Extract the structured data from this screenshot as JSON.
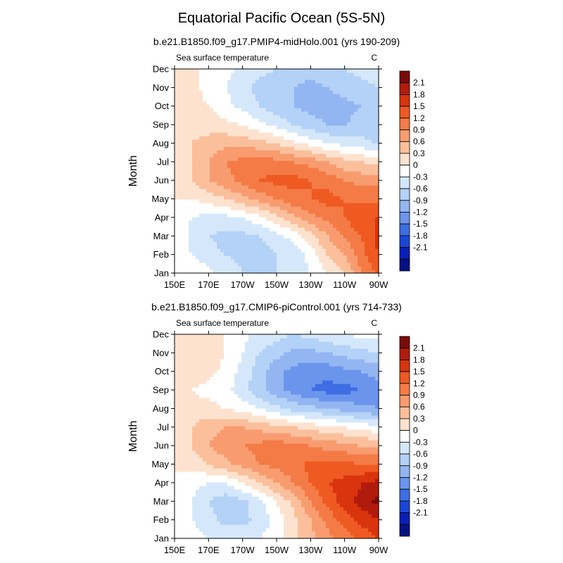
{
  "figure": {
    "title": "Equatorial Pacific Ocean (5S-5N)"
  },
  "colorbar": {
    "levels": [
      "2.1",
      "1.8",
      "1.5",
      "1.2",
      "0.9",
      "0.6",
      "0.3",
      "0",
      "-0.3",
      "-0.6",
      "-0.9",
      "-1.2",
      "-1.5",
      "-1.8",
      "-2.1"
    ],
    "colors": [
      "#7b0a0a",
      "#b11b0c",
      "#d9340e",
      "#ef5a22",
      "#f47b46",
      "#f89c70",
      "#fbbf9b",
      "#fde3cf",
      "#ffffff",
      "#d5e8fb",
      "#b4d1f7",
      "#93b6f2",
      "#6b95ec",
      "#3e6de4",
      "#1c46d6",
      "#0b1fb8",
      "#061283"
    ]
  },
  "chart_data": [
    {
      "type": "heatmap",
      "subtitle": "b.e21.B1850.f09_g17.PMIP4-midHolo.001 (yrs 190-209)",
      "label_left": "Sea surface temperature",
      "label_right": "C",
      "ylabel": "Month",
      "xlabel": "",
      "x_ticks": [
        "150E",
        "170E",
        "170W",
        "150W",
        "130W",
        "110W",
        "90W"
      ],
      "y_ticks": [
        "Jan",
        "Feb",
        "Mar",
        "Apr",
        "May",
        "Jun",
        "Jul",
        "Aug",
        "Sep",
        "Oct",
        "Nov",
        "Dec"
      ],
      "xlim": [
        150,
        270
      ],
      "values_rows_jan_to_dec_cols_150E_to_90W": [
        [
          0.0,
          0.0,
          -0.2,
          -0.4,
          -0.6,
          -0.7,
          -0.6,
          -0.5,
          -0.3,
          0.0,
          0.3,
          0.9,
          1.3
        ],
        [
          0.0,
          -0.3,
          -0.5,
          -0.6,
          -0.7,
          -0.8,
          -0.6,
          -0.5,
          -0.2,
          0.3,
          0.6,
          1.1,
          1.5
        ],
        [
          0.0,
          -0.4,
          -0.6,
          -0.7,
          -0.7,
          -0.6,
          -0.4,
          -0.2,
          0.2,
          0.6,
          0.9,
          1.2,
          1.6
        ],
        [
          0.0,
          -0.3,
          -0.4,
          -0.4,
          -0.3,
          -0.1,
          0.2,
          0.5,
          0.8,
          1.0,
          1.2,
          1.5,
          1.5
        ],
        [
          0.0,
          0.0,
          0.1,
          0.3,
          0.5,
          0.7,
          0.9,
          1.1,
          1.2,
          1.3,
          1.2,
          1.1,
          1.1
        ],
        [
          0.0,
          0.3,
          0.6,
          0.8,
          1.0,
          1.2,
          1.3,
          1.3,
          1.2,
          1.1,
          0.9,
          0.8,
          0.8
        ],
        [
          0.1,
          0.3,
          0.6,
          0.9,
          1.0,
          1.1,
          1.0,
          0.9,
          0.8,
          0.6,
          0.4,
          0.3,
          0.2
        ],
        [
          0.2,
          0.3,
          0.4,
          0.5,
          0.5,
          0.4,
          0.3,
          0.1,
          -0.1,
          -0.3,
          -0.4,
          -0.5,
          -0.6
        ],
        [
          0.1,
          0.2,
          0.2,
          0.1,
          0.0,
          -0.2,
          -0.4,
          -0.6,
          -0.8,
          -0.9,
          -0.9,
          -0.8,
          -0.9
        ],
        [
          0.2,
          0.1,
          0.0,
          -0.2,
          -0.4,
          -0.6,
          -0.8,
          -0.9,
          -1.0,
          -1.0,
          -1.0,
          -0.9,
          -0.8
        ],
        [
          0.2,
          0.1,
          -0.1,
          -0.3,
          -0.5,
          -0.7,
          -0.8,
          -0.9,
          -1.0,
          -0.9,
          -0.8,
          -0.7,
          -0.6
        ],
        [
          0.3,
          0.1,
          -0.1,
          -0.2,
          -0.4,
          -0.5,
          -0.6,
          -0.7,
          -0.8,
          -0.7,
          -0.6,
          -0.5,
          -0.4
        ]
      ]
    },
    {
      "type": "heatmap",
      "subtitle": "b.e21.B1850.f09_g17.CMIP6-piControl.001 (yrs 714-733)",
      "label_left": "Sea surface temperature",
      "label_right": "C",
      "ylabel": "Month",
      "xlabel": "",
      "x_ticks": [
        "150E",
        "170E",
        "170W",
        "150W",
        "130W",
        "110W",
        "90W"
      ],
      "y_ticks": [
        "Jan",
        "Feb",
        "Mar",
        "Apr",
        "May",
        "Jun",
        "Jul",
        "Aug",
        "Sep",
        "Oct",
        "Nov",
        "Dec"
      ],
      "xlim": [
        150,
        270
      ],
      "values_rows_jan_to_dec_cols_150E_to_90W": [
        [
          0.0,
          -0.1,
          -0.3,
          -0.4,
          -0.4,
          -0.3,
          -0.1,
          0.2,
          0.5,
          0.8,
          1.0,
          1.3,
          1.5
        ],
        [
          0.0,
          -0.3,
          -0.5,
          -0.7,
          -0.7,
          -0.5,
          -0.2,
          0.2,
          0.6,
          1.0,
          1.3,
          1.6,
          1.8
        ],
        [
          0.0,
          -0.3,
          -0.6,
          -0.8,
          -0.7,
          -0.4,
          0.0,
          0.4,
          0.9,
          1.3,
          1.7,
          1.9,
          2.2
        ],
        [
          0.0,
          -0.2,
          -0.3,
          -0.3,
          0.0,
          0.3,
          0.6,
          0.9,
          1.2,
          1.5,
          1.6,
          1.8,
          1.9
        ],
        [
          0.0,
          0.1,
          0.3,
          0.5,
          0.7,
          0.9,
          1.0,
          1.1,
          1.3,
          1.3,
          1.3,
          1.2,
          1.2
        ],
        [
          0.0,
          0.3,
          0.6,
          0.8,
          0.9,
          1.0,
          1.1,
          1.0,
          0.9,
          0.8,
          0.7,
          0.6,
          0.6
        ],
        [
          0.1,
          0.3,
          0.5,
          0.6,
          0.6,
          0.5,
          0.4,
          0.3,
          0.2,
          0.1,
          0.0,
          -0.1,
          -0.2
        ],
        [
          0.1,
          0.1,
          0.1,
          0.0,
          -0.1,
          -0.3,
          -0.5,
          -0.7,
          -0.8,
          -0.9,
          -1.0,
          -1.1,
          -1.2
        ],
        [
          0.1,
          0.0,
          -0.1,
          -0.2,
          -0.5,
          -0.8,
          -1.1,
          -1.3,
          -1.5,
          -1.6,
          -1.6,
          -1.5,
          -1.3
        ],
        [
          0.3,
          0.2,
          0.1,
          -0.1,
          -0.4,
          -0.8,
          -1.1,
          -1.3,
          -1.4,
          -1.4,
          -1.3,
          -1.2,
          -1.1
        ],
        [
          0.3,
          0.3,
          0.2,
          0.0,
          -0.3,
          -0.6,
          -0.8,
          -1.0,
          -1.0,
          -0.9,
          -0.8,
          -0.7,
          -0.6
        ],
        [
          0.3,
          0.3,
          0.2,
          0.0,
          -0.2,
          -0.4,
          -0.5,
          -0.6,
          -0.5,
          -0.4,
          -0.3,
          -0.2,
          -0.2
        ]
      ]
    }
  ]
}
